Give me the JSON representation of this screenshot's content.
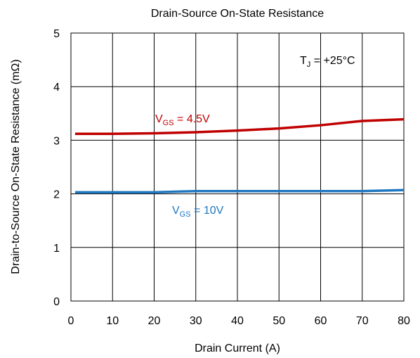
{
  "chart_data": {
    "type": "line",
    "title": "Drain-Source On-State Resistance",
    "x_label": "Drain Current (A)",
    "y_label": "Drain-to-Source On-State Resistance (mΩ)",
    "x": [
      1,
      10,
      20,
      30,
      40,
      50,
      60,
      70,
      80
    ],
    "series": [
      {
        "label_main": "V",
        "label_sub": "GS",
        "label_rest": " = 4.5V",
        "color": "#c00000",
        "values": [
          3.12,
          3.12,
          3.13,
          3.15,
          3.18,
          3.22,
          3.28,
          3.36,
          3.39
        ]
      },
      {
        "label_main": "V",
        "label_sub": "GS",
        "label_rest": " = 10V",
        "color": "#1f77c0",
        "values": [
          2.03,
          2.03,
          2.03,
          2.05,
          2.05,
          2.05,
          2.05,
          2.05,
          2.07
        ]
      }
    ],
    "annotation": {
      "main": "T",
      "sub": "J",
      "rest": " = +25°C"
    },
    "xlim": [
      0,
      80
    ],
    "xticks": [
      0,
      10,
      20,
      30,
      40,
      50,
      60,
      70,
      80
    ],
    "ylim": [
      0,
      5
    ],
    "yticks": [
      0,
      1,
      2,
      3,
      4,
      5
    ],
    "grid": true
  }
}
